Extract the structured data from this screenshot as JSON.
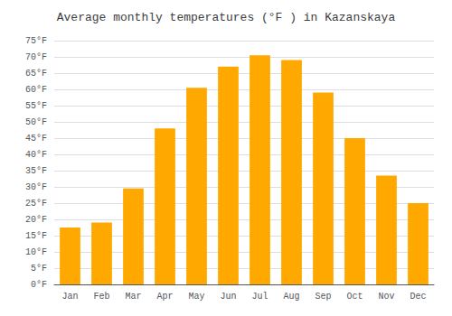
{
  "chart_data": {
    "type": "bar",
    "title": "Average monthly temperatures (°F ) in Kazanskaya",
    "categories": [
      "Jan",
      "Feb",
      "Mar",
      "Apr",
      "May",
      "Jun",
      "Jul",
      "Aug",
      "Sep",
      "Oct",
      "Nov",
      "Dec"
    ],
    "values": [
      17.5,
      19.0,
      29.5,
      48.0,
      60.5,
      67.0,
      70.5,
      69.0,
      59.0,
      45.0,
      33.5,
      25.0
    ],
    "color": "#FFA800",
    "ylim": [
      0,
      75
    ],
    "yticks": [
      {
        "value": 0,
        "label": "0°F"
      },
      {
        "value": 5,
        "label": "5°F"
      },
      {
        "value": 10,
        "label": "10°F"
      },
      {
        "value": 15,
        "label": "15°F"
      },
      {
        "value": 20,
        "label": "20°F"
      },
      {
        "value": 25,
        "label": "25°F"
      },
      {
        "value": 30,
        "label": "30°F"
      },
      {
        "value": 35,
        "label": "35°F"
      },
      {
        "value": 40,
        "label": "40°F"
      },
      {
        "value": 45,
        "label": "45°F"
      },
      {
        "value": 50,
        "label": "50°F"
      },
      {
        "value": 55,
        "label": "55°F"
      },
      {
        "value": 60,
        "label": "60°F"
      },
      {
        "value": 65,
        "label": "65°F"
      },
      {
        "value": 70,
        "label": "70°F"
      },
      {
        "value": 75,
        "label": "75°F"
      }
    ],
    "grid": true
  }
}
